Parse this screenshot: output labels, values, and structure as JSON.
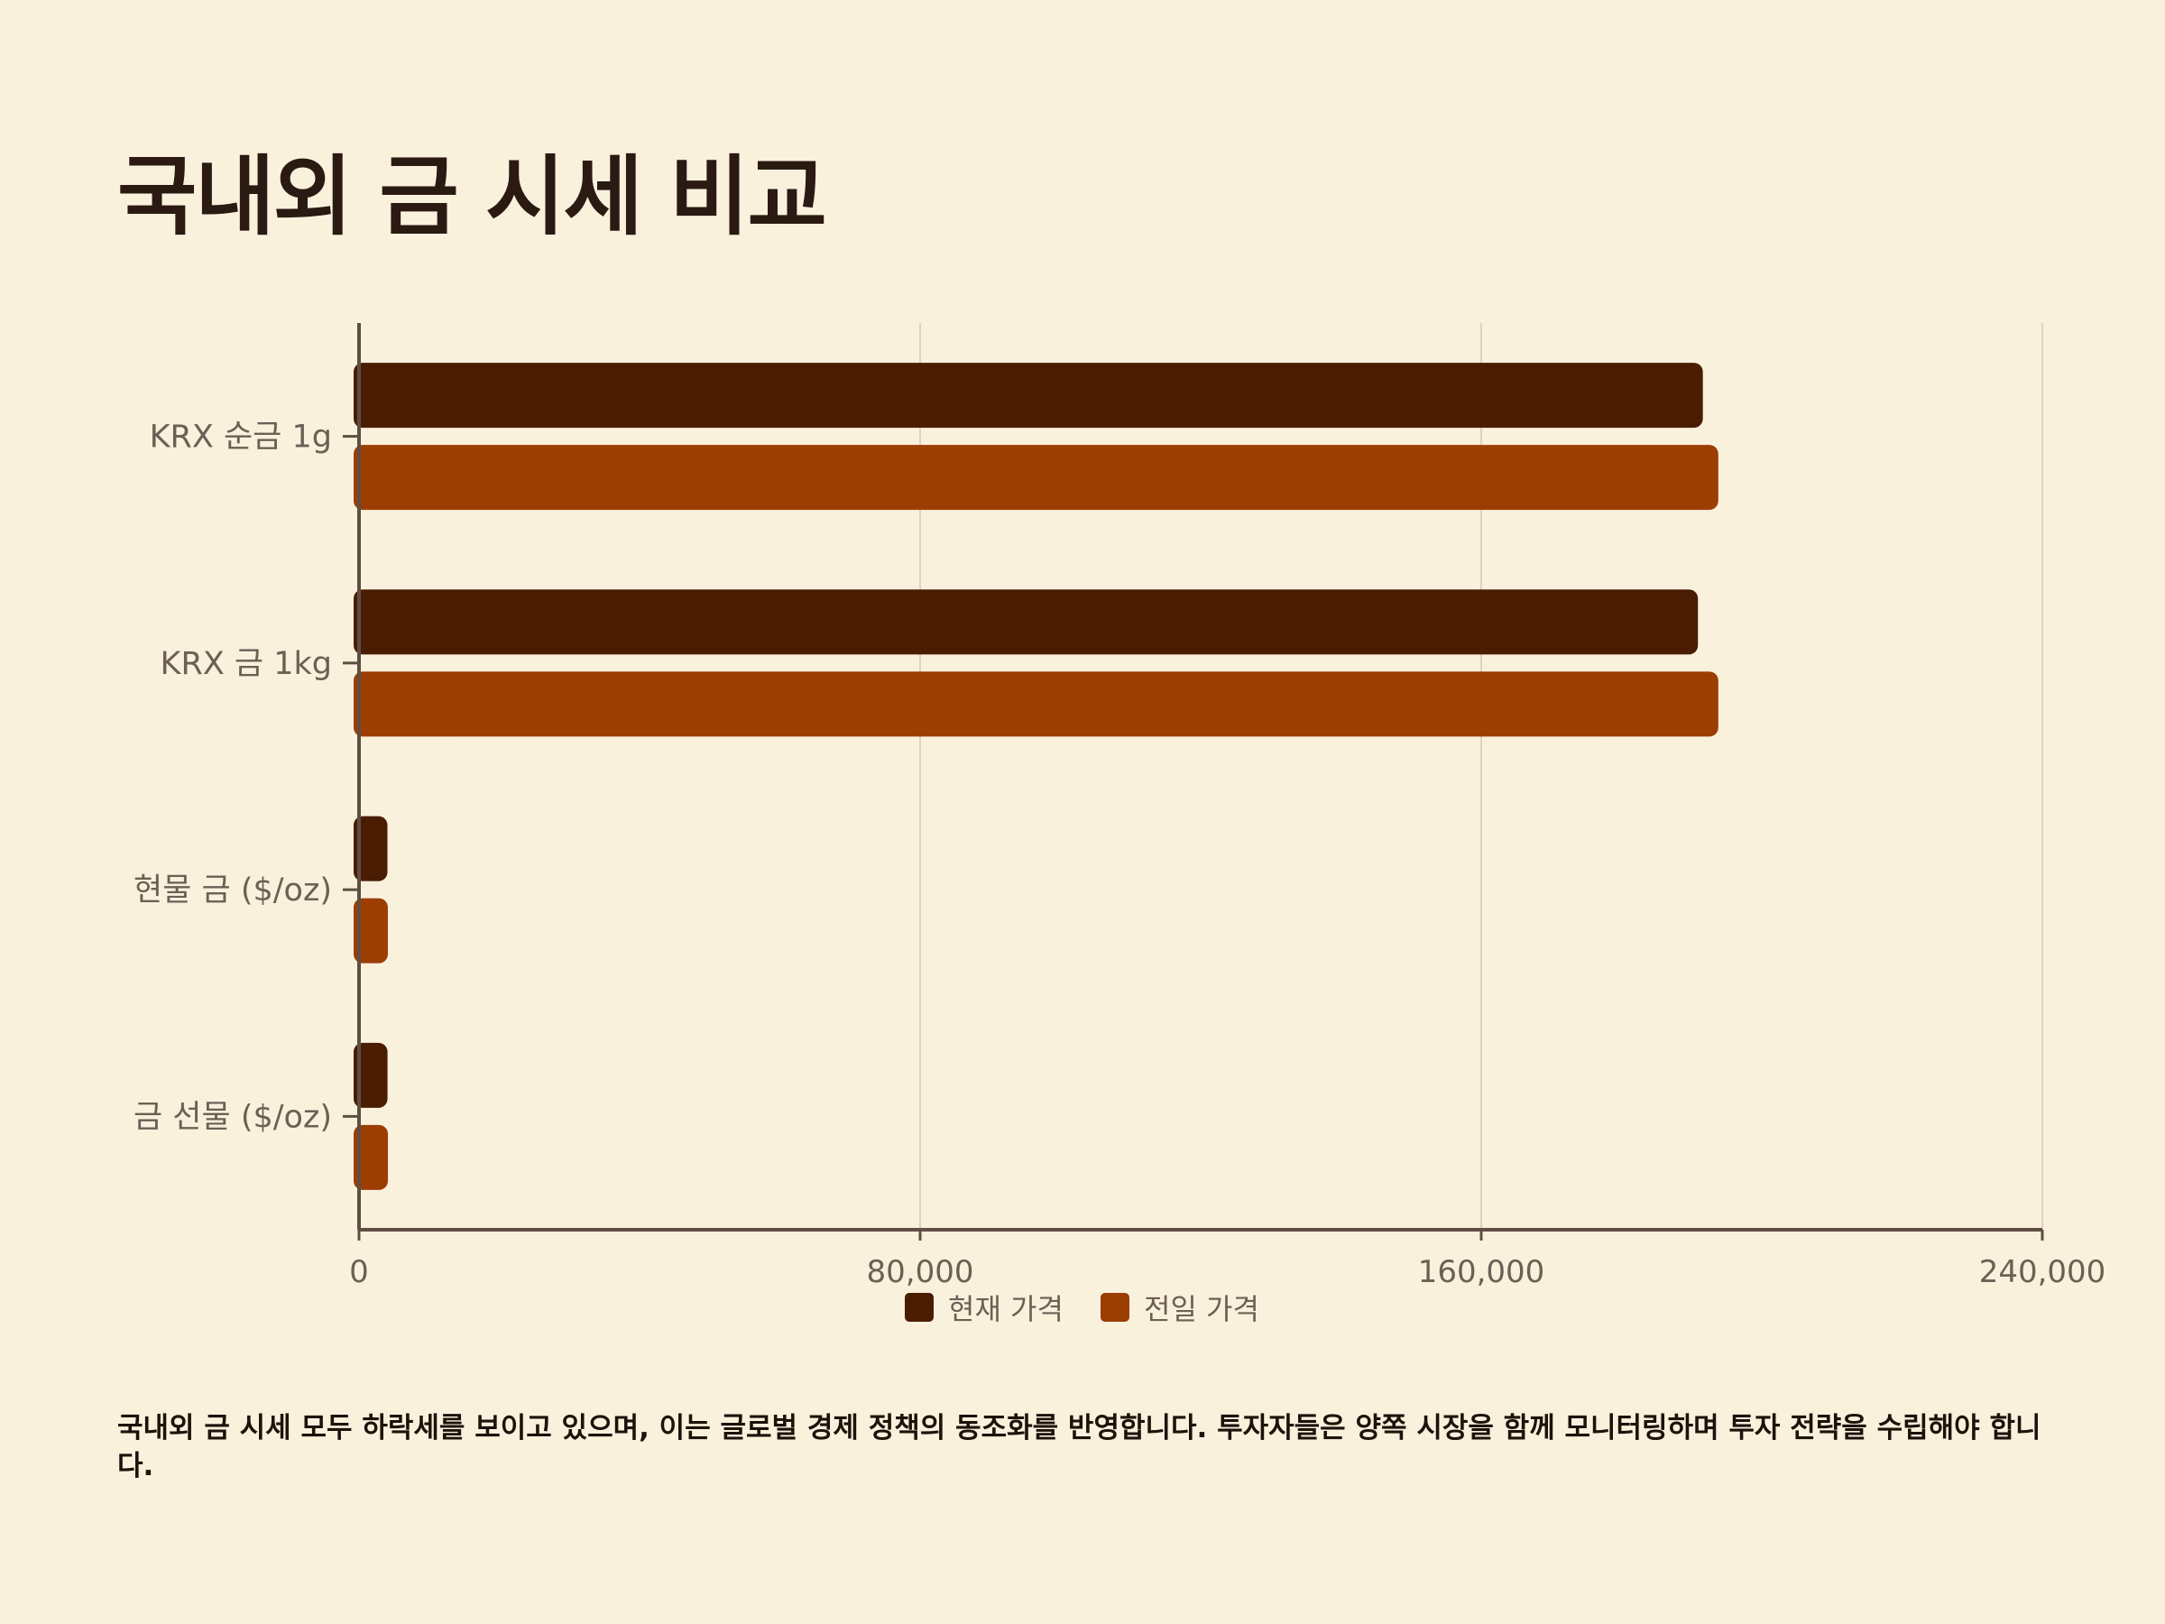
{
  "page": {
    "title": "국내외 금 시세 비교",
    "caption": "국내외 금 시세 모두 하락세를 보이고 있으며, 이는 글로벌 경제 정책의 동조화를 반영합니다. 투자자들은 양쪽 시장을 함께 모니터링하며 투자 전략을 수립해야 합니다."
  },
  "chart_data": {
    "type": "bar",
    "orientation": "horizontal",
    "title": "국내외 금 시세 비교",
    "categories": [
      "KRX 순금 1g",
      "KRX 금 1kg",
      "현물 금 ($/oz)",
      "금 선물 ($/oz)"
    ],
    "series": [
      {
        "name": "현재 가격",
        "color": "#4a1c02",
        "values": [
          191600,
          190900,
          4050,
          4060
        ]
      },
      {
        "name": "전일 가격",
        "color": "#9c3d02",
        "values": [
          193800,
          193800,
          4110,
          4120
        ]
      }
    ],
    "xlim": [
      0,
      240000
    ],
    "xticks": [
      0,
      80000,
      160000,
      240000
    ],
    "xtick_labels": [
      "0",
      "80,000",
      "160,000",
      "240,000"
    ],
    "grid": true,
    "legend": "bottom"
  }
}
